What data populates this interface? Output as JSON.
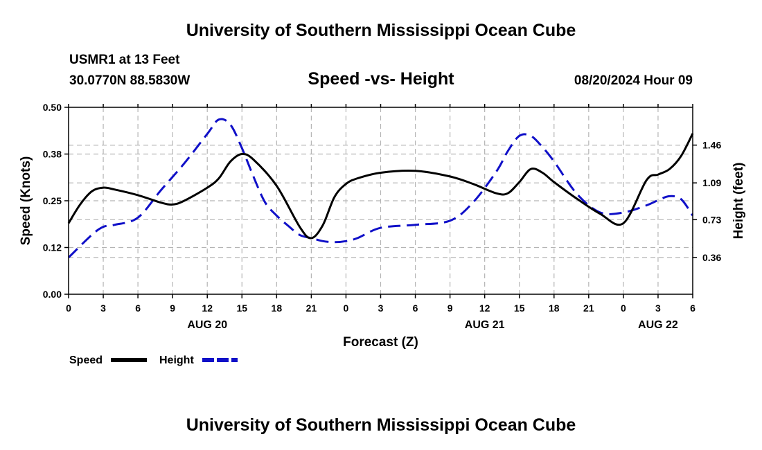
{
  "header": {
    "title": "University of Southern Mississippi Ocean Cube",
    "station": "USMR1 at 13 Feet",
    "coords": "30.0770N  88.5830W",
    "subtitle": "Speed -vs- Height",
    "datetime": "08/20/2024 Hour 09"
  },
  "footer": {
    "title": "University of Southern Mississippi Ocean Cube"
  },
  "colors": {
    "speed": "#000000",
    "height": "#1010c8",
    "grid": "#b4b4b4"
  },
  "chart_data": {
    "type": "line",
    "title": "Speed -vs- Height",
    "xlabel": "Forecast (Z)",
    "ylabel": "Speed (Knots)",
    "y2label": "Height (feet)",
    "x_range": [
      0,
      54
    ],
    "x_ticks": [
      0,
      3,
      6,
      9,
      12,
      15,
      18,
      21,
      24,
      27,
      30,
      33,
      36,
      39,
      42,
      45,
      48,
      51,
      54
    ],
    "x_tick_labels": [
      "0",
      "3",
      "6",
      "9",
      "12",
      "15",
      "18",
      "21",
      "0",
      "3",
      "6",
      "9",
      "12",
      "15",
      "18",
      "21",
      "0",
      "3",
      "6"
    ],
    "date_labels": [
      {
        "x": 12,
        "text": "AUG 20"
      },
      {
        "x": 36,
        "text": "AUG 21"
      },
      {
        "x": 51,
        "text": "AUG 22"
      }
    ],
    "ylim": [
      0,
      0.5
    ],
    "y_ticks": [
      0,
      0.125,
      0.25,
      0.375,
      0.5
    ],
    "y_tick_labels": [
      "0.00",
      "0.12",
      "0.25",
      "0.38",
      "0.50"
    ],
    "y2lim": [
      0,
      1.83
    ],
    "y2_ticks": [
      0.36,
      0.73,
      1.09,
      1.46
    ],
    "y2_tick_labels": [
      "0.36",
      "0.73",
      "1.09",
      "1.46"
    ],
    "grid": true,
    "legend_position": "bottom-left",
    "series": [
      {
        "name": "Speed",
        "axis": "left",
        "style": "solid",
        "x": [
          0,
          1,
          2,
          3,
          4,
          6,
          8,
          9,
          10,
          12,
          13,
          14,
          15,
          16,
          18,
          20,
          21,
          22,
          23,
          24,
          25,
          27,
          30,
          33,
          35,
          37,
          38,
          39,
          40,
          41,
          42,
          44,
          46,
          48,
          50,
          51,
          52,
          53,
          54
        ],
        "values": [
          0.19,
          0.24,
          0.275,
          0.285,
          0.28,
          0.265,
          0.245,
          0.24,
          0.25,
          0.285,
          0.31,
          0.355,
          0.375,
          0.36,
          0.29,
          0.18,
          0.15,
          0.185,
          0.26,
          0.295,
          0.31,
          0.325,
          0.33,
          0.315,
          0.295,
          0.27,
          0.27,
          0.3,
          0.335,
          0.325,
          0.3,
          0.255,
          0.215,
          0.19,
          0.305,
          0.32,
          0.335,
          0.37,
          0.43
        ]
      },
      {
        "name": "Height",
        "axis": "right",
        "style": "dashed",
        "x": [
          0,
          2,
          3,
          4,
          6,
          8,
          10,
          12,
          13,
          14,
          15,
          16,
          17,
          18,
          19,
          20,
          21,
          22,
          23,
          24,
          25,
          27,
          30,
          33,
          35,
          37,
          38,
          39,
          40,
          41,
          42,
          44,
          46,
          48,
          50,
          51,
          52,
          53,
          54
        ],
        "values": [
          0.36,
          0.58,
          0.66,
          0.68,
          0.75,
          1.02,
          1.28,
          1.57,
          1.71,
          1.66,
          1.43,
          1.15,
          0.9,
          0.77,
          0.67,
          0.58,
          0.55,
          0.52,
          0.51,
          0.52,
          0.55,
          0.65,
          0.68,
          0.72,
          0.9,
          1.2,
          1.4,
          1.55,
          1.55,
          1.44,
          1.3,
          0.98,
          0.8,
          0.8,
          0.87,
          0.92,
          0.96,
          0.93,
          0.77
        ]
      }
    ]
  }
}
